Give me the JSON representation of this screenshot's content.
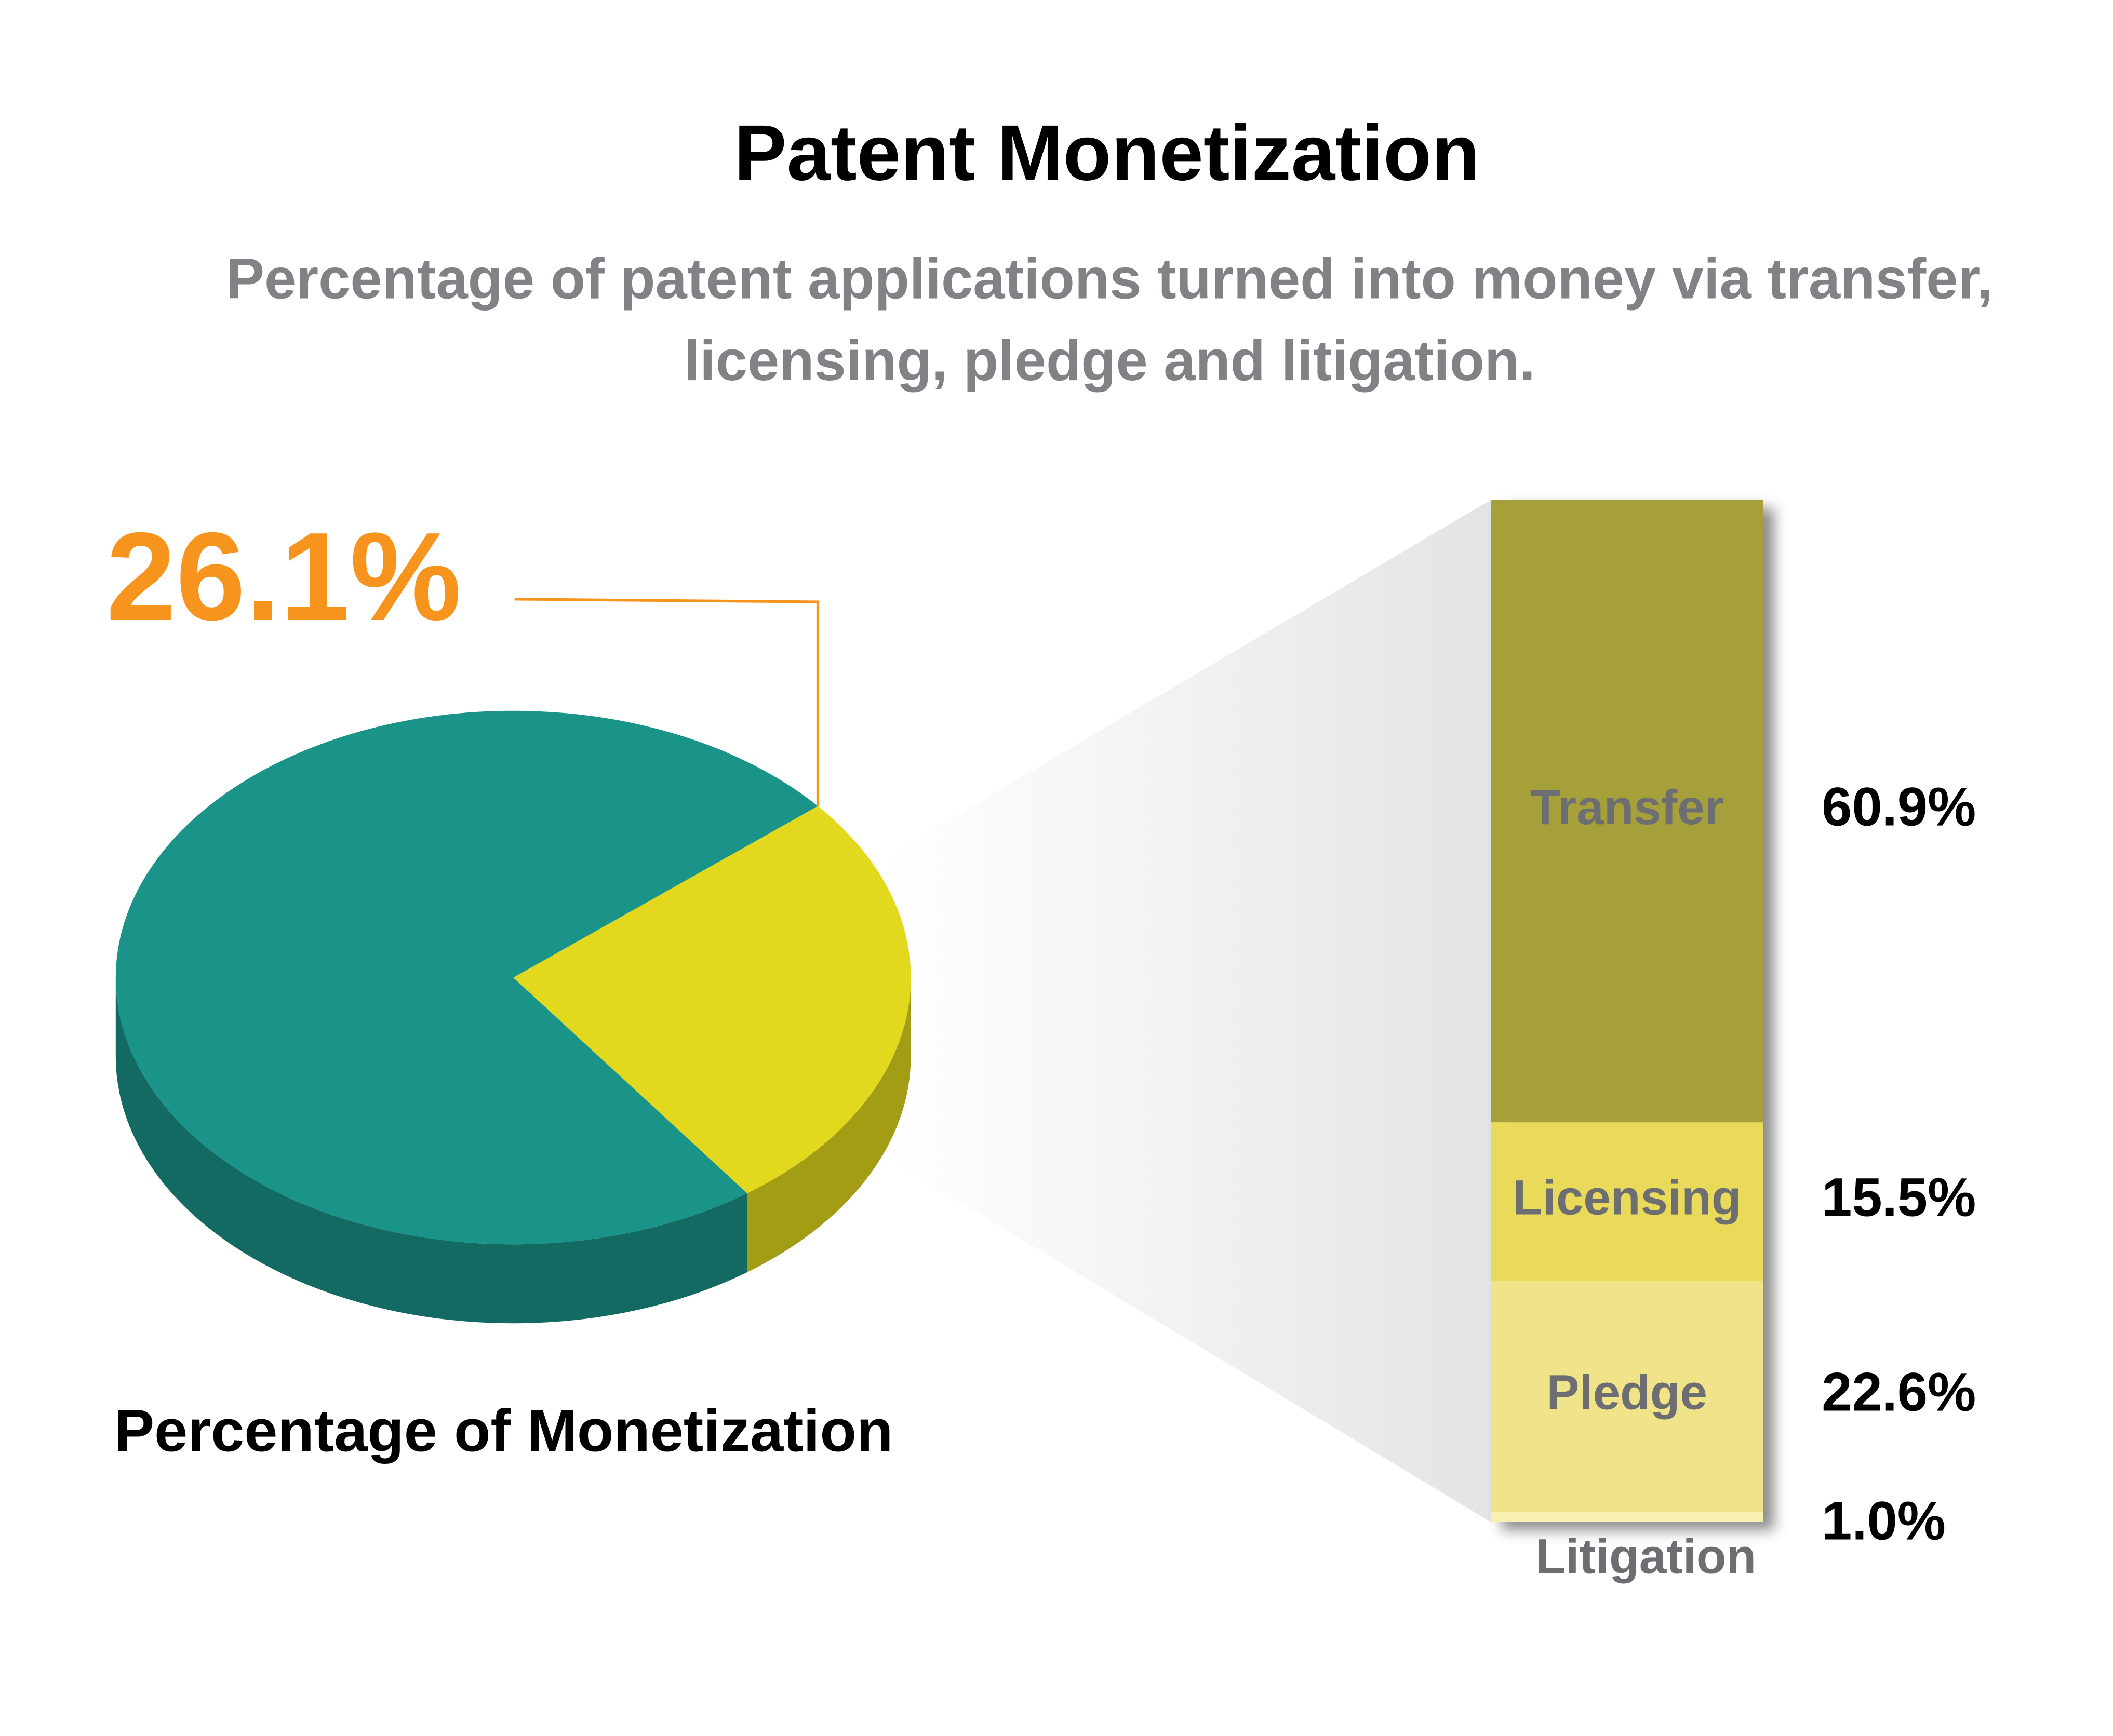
{
  "title": "Patent Monetization",
  "subtitle": "Percentage of patent applications turned into money via transfer, licensing, pledge and litigation.",
  "chart_data": [
    {
      "type": "pie",
      "title": "Percentage of Monetization",
      "values": [
        26.1,
        73.9
      ],
      "value_labels": [
        "26.1%",
        null
      ],
      "colors": [
        "#e2d81d",
        "#1a9389"
      ],
      "label_color": "#f7941d"
    },
    {
      "type": "stacked-bar",
      "categories": [
        "Transfer",
        "Licensing",
        "Pledge",
        "Litigation"
      ],
      "values": [
        60.9,
        15.5,
        22.6,
        1.0
      ],
      "value_labels": [
        "60.9%",
        "15.5%",
        "22.6%",
        "1.0%"
      ],
      "colors": [
        "#a6a03a",
        "#e9da5a",
        "#f0e38a",
        "#f8f1b3"
      ]
    }
  ]
}
